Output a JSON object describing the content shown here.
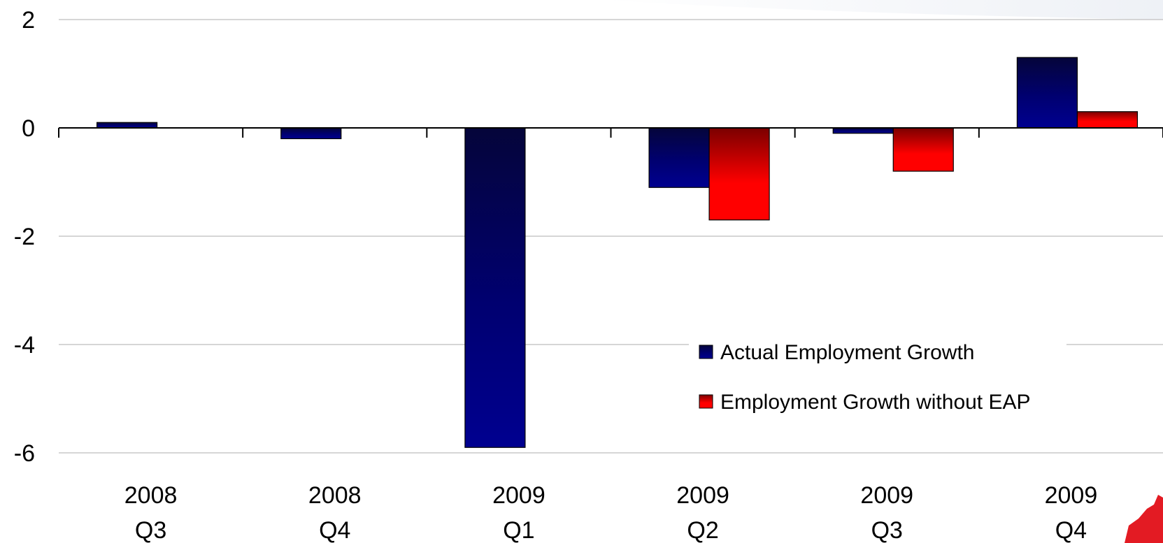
{
  "chart_data": {
    "type": "bar",
    "categories": [
      [
        "2008",
        "Q3"
      ],
      [
        "2008",
        "Q4"
      ],
      [
        "2009",
        "Q1"
      ],
      [
        "2009",
        "Q2"
      ],
      [
        "2009",
        "Q3"
      ],
      [
        "2009",
        "Q4"
      ]
    ],
    "series": [
      {
        "name": "Actual Employment Growth",
        "color": "#000080",
        "values": [
          0.1,
          -0.2,
          -5.9,
          -1.1,
          -0.1,
          1.3
        ]
      },
      {
        "name": "Employment Growth without EAP",
        "color": "#ff0000",
        "values": [
          null,
          null,
          null,
          -1.7,
          -0.8,
          0.3
        ]
      }
    ],
    "yticks": [
      "2",
      "0",
      "-2",
      "-4",
      "-6"
    ],
    "ylim": [
      -6,
      2
    ],
    "grid": true,
    "legend_position": "bottom-right"
  }
}
